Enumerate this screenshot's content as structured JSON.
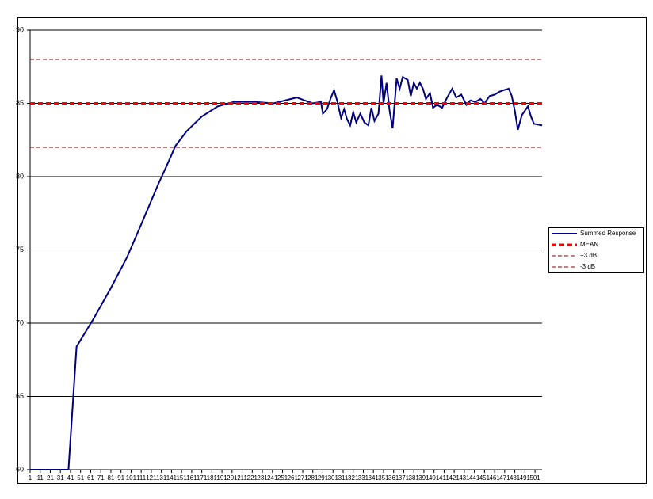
{
  "chart_data": {
    "type": "line",
    "xlim": [
      1,
      508
    ],
    "xticks": [
      1,
      11,
      21,
      31,
      41,
      51,
      61,
      71,
      81,
      91,
      101,
      111,
      121,
      131,
      141,
      151,
      161,
      171,
      181,
      191,
      201,
      211,
      221,
      231,
      241,
      251,
      261,
      271,
      281,
      291,
      301,
      311,
      321,
      331,
      341,
      351,
      361,
      371,
      381,
      391,
      401,
      411,
      421,
      431,
      441,
      451,
      461,
      471,
      481,
      491,
      501
    ],
    "ylim": [
      60,
      90
    ],
    "yticks": [
      60,
      65,
      70,
      75,
      80,
      85,
      90
    ],
    "grid": true,
    "legend": "right",
    "x": [
      1,
      39,
      43,
      47,
      63,
      81,
      97,
      112,
      128,
      136,
      145,
      156,
      171,
      187,
      203,
      222,
      242,
      265,
      281,
      289,
      291,
      295,
      299,
      302,
      305,
      309,
      312,
      315,
      318,
      321,
      324,
      328,
      332,
      336,
      339,
      342,
      346,
      349,
      351,
      354,
      357,
      360,
      364,
      367,
      370,
      375,
      378,
      381,
      384,
      387,
      390,
      393,
      397,
      400,
      404,
      409,
      414,
      419,
      423,
      428,
      433,
      437,
      442,
      447,
      451,
      456,
      461,
      466,
      470,
      475,
      478,
      481,
      484,
      488,
      491,
      494,
      497,
      500,
      508
    ],
    "series": [
      {
        "name": "Summed Response",
        "color": "#000080",
        "values": [
          60,
          60,
          64.2,
          68.4,
          70.2,
          72.4,
          74.5,
          76.9,
          79.5,
          80.7,
          82.1,
          83.1,
          84.1,
          84.8,
          85.1,
          85.1,
          85,
          85.4,
          85,
          85.1,
          84.3,
          84.6,
          85.4,
          85.9,
          85.2,
          84,
          84.6,
          83.9,
          83.5,
          84.4,
          83.7,
          84.3,
          83.7,
          83.5,
          84.7,
          83.8,
          84.3,
          86.9,
          85,
          86.4,
          84.5,
          83.3,
          86.7,
          86,
          86.8,
          86.6,
          85.5,
          86.4,
          86,
          86.4,
          86,
          85.3,
          85.7,
          84.7,
          84.9,
          84.7,
          85.4,
          86,
          85.4,
          85.6,
          84.9,
          85.2,
          85.1,
          85.3,
          85,
          85.5,
          85.6,
          85.8,
          85.9,
          86,
          85.5,
          84.5,
          83.2,
          84.2,
          84.5,
          84.8,
          84.1,
          83.6,
          83.5
        ]
      },
      {
        "name": "MEAN",
        "color": "#ff0000",
        "value": 85,
        "dash": "thick"
      },
      {
        "name": "+3 dB",
        "color": "#800000",
        "value": 88,
        "dash": "thin"
      },
      {
        "name": "-3 dB",
        "color": "#800000",
        "value": 82,
        "dash": "thin"
      }
    ]
  }
}
